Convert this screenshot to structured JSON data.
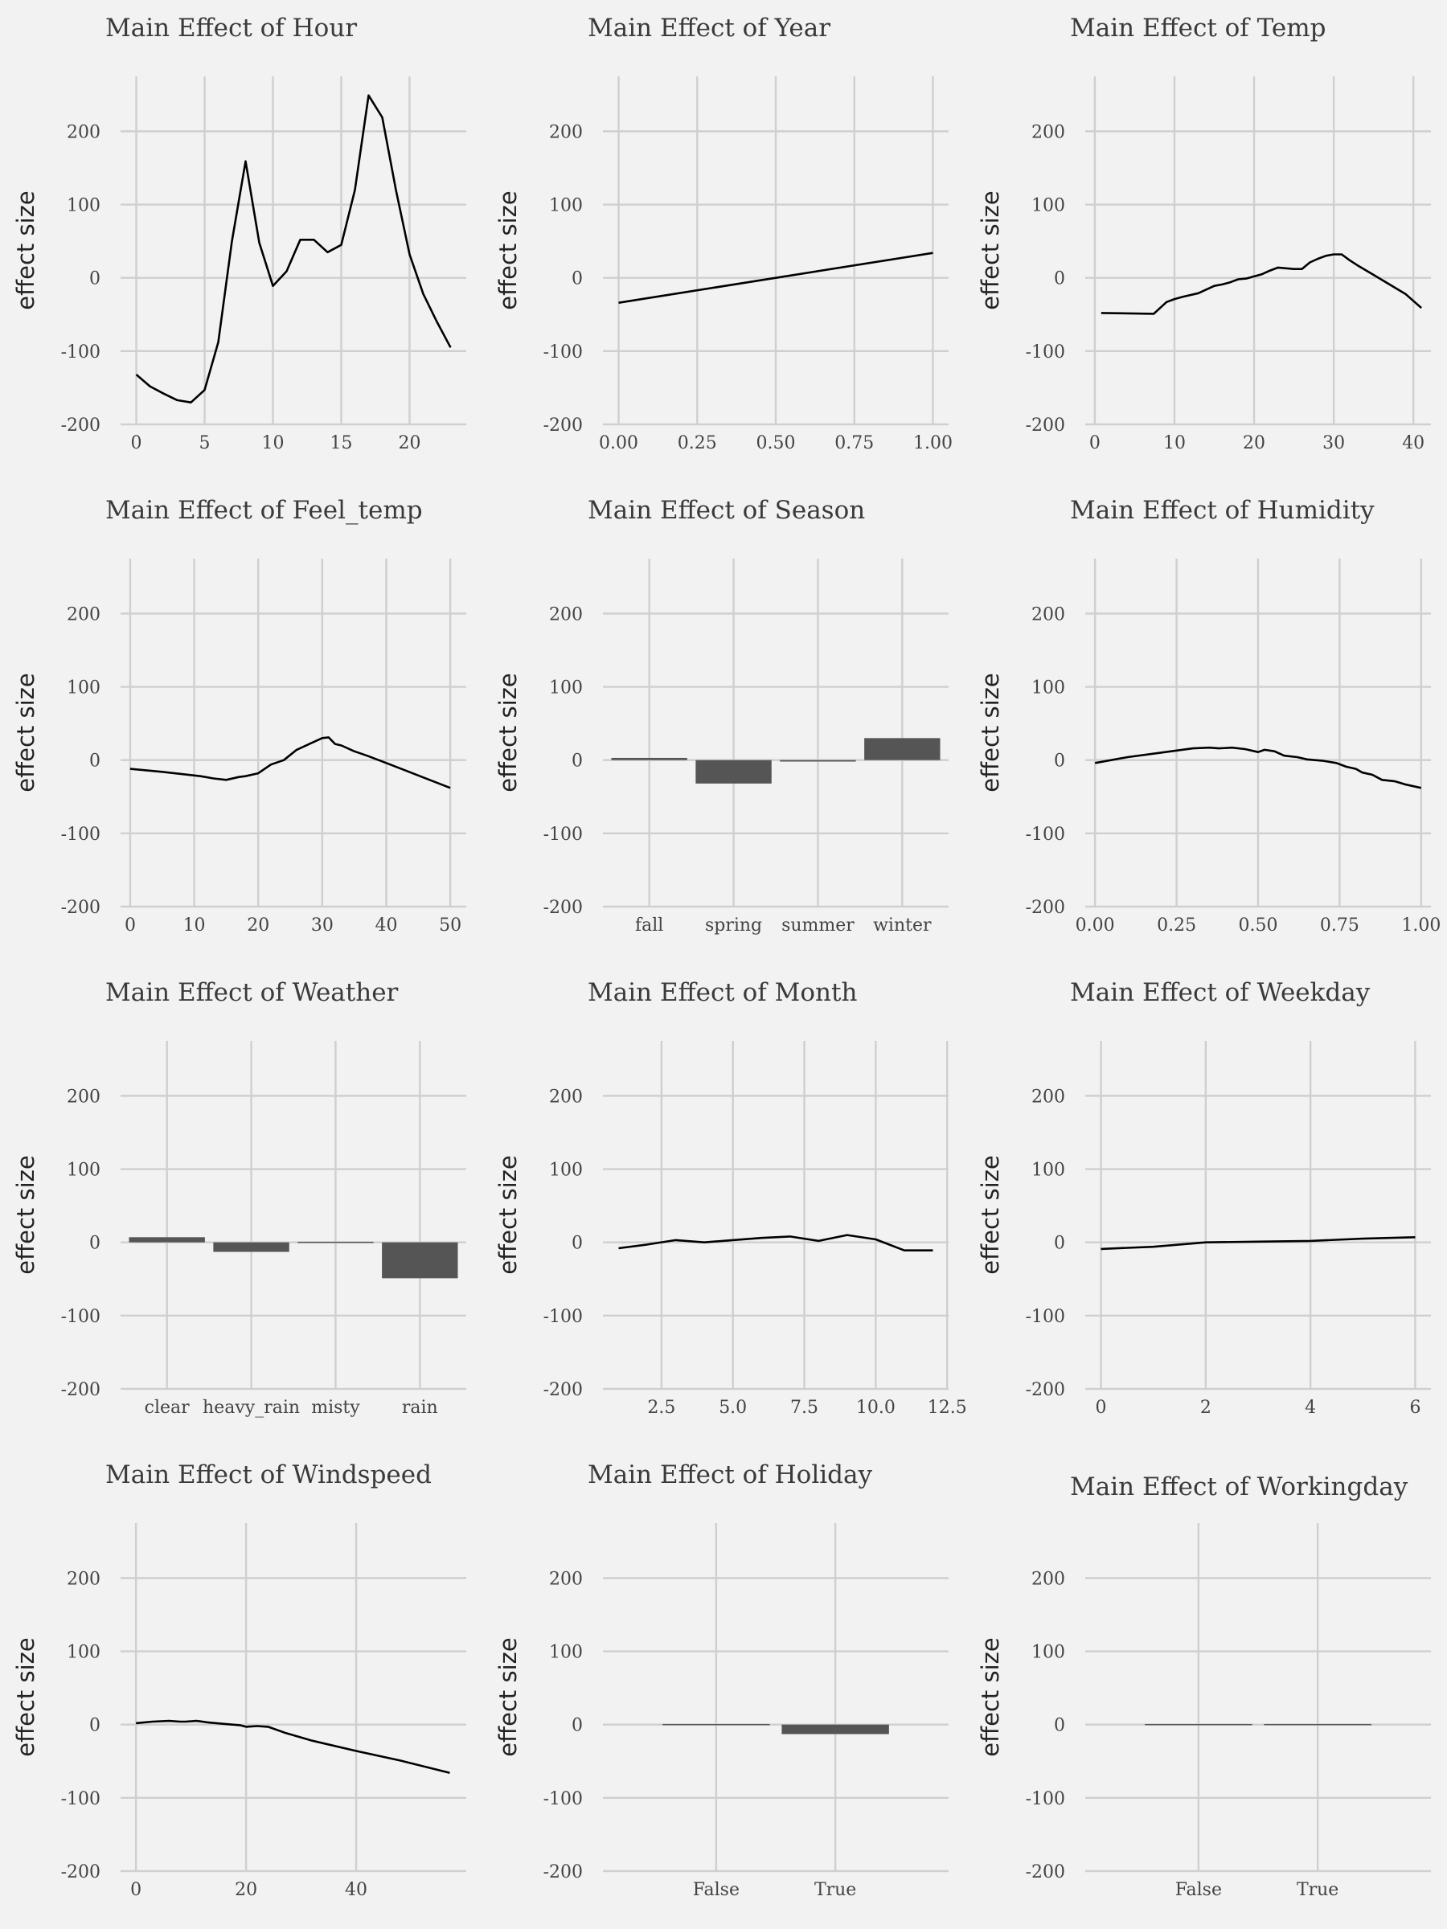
{
  "style": {
    "background": "#f2f2f2",
    "grid_color": "#cfcfcf",
    "line_color": "#000000",
    "bar_color": "#555555"
  },
  "chart_data": [
    {
      "type": "line",
      "title": "Main Effect of Hour",
      "ylabel": "effect size",
      "xlim": [
        -1.15,
        24.15
      ],
      "xticks": [
        0,
        5,
        10,
        15,
        20
      ],
      "xtick_labels": [
        "0",
        "5",
        "10",
        "15",
        "20"
      ],
      "ylim": [
        -200,
        275
      ],
      "yticks": [
        -200,
        -100,
        0,
        100,
        200
      ],
      "ytick_labels": [
        "-200",
        "-100",
        "0",
        "100",
        "200"
      ],
      "x": [
        0,
        1,
        2,
        3,
        4,
        5,
        6,
        7,
        8,
        9,
        10,
        11,
        12,
        13,
        14,
        15,
        16,
        17,
        18,
        19,
        20,
        21,
        22,
        23
      ],
      "y": [
        -132,
        -148,
        -158,
        -167,
        -170,
        -153,
        -88,
        50,
        159,
        48,
        -11,
        9,
        52,
        52,
        35,
        45,
        120,
        249,
        219,
        120,
        32,
        -22,
        -60,
        -95
      ]
    },
    {
      "type": "line",
      "title": "Main Effect of Year",
      "ylabel": "effect size",
      "xlim": [
        -0.05,
        1.05
      ],
      "xticks": [
        0,
        0.25,
        0.5,
        0.75,
        1
      ],
      "xtick_labels": [
        "0.00",
        "0.25",
        "0.50",
        "0.75",
        "1.00"
      ],
      "ylim": [
        -200,
        275
      ],
      "yticks": [
        -200,
        -100,
        0,
        100,
        200
      ],
      "ytick_labels": [
        "-200",
        "-100",
        "0",
        "100",
        "200"
      ],
      "x": [
        0,
        1
      ],
      "y": [
        -34,
        34
      ]
    },
    {
      "type": "line",
      "title": "Main Effect of Temp",
      "ylabel": "effect size",
      "xlim": [
        -1.2,
        42.2
      ],
      "xticks": [
        0,
        10,
        20,
        30,
        40
      ],
      "xtick_labels": [
        "0",
        "10",
        "20",
        "30",
        "40"
      ],
      "ylim": [
        -200,
        275
      ],
      "yticks": [
        -200,
        -100,
        0,
        100,
        200
      ],
      "ytick_labels": [
        "-200",
        "-100",
        "0",
        "100",
        "200"
      ],
      "x": [
        0.8,
        7.4,
        9,
        10,
        11,
        13,
        15,
        16,
        17,
        18,
        19,
        20,
        21,
        22,
        23,
        24,
        25,
        26,
        27,
        28,
        29,
        30,
        31,
        32,
        33,
        35,
        37,
        39,
        41
      ],
      "y": [
        -48,
        -49,
        -33,
        -29,
        -26,
        -21,
        -11,
        -9,
        -6,
        -2,
        -1,
        2,
        5,
        10,
        14,
        13,
        12,
        12,
        21,
        26,
        30,
        32,
        32,
        24,
        17,
        4,
        -9,
        -22,
        -41
      ]
    },
    {
      "type": "line",
      "title": "Main Effect of Feel_temp",
      "ylabel": "effect size",
      "xlim": [
        -1.5,
        52.5
      ],
      "xticks": [
        0,
        10,
        20,
        30,
        40,
        50
      ],
      "xtick_labels": [
        "0",
        "10",
        "20",
        "30",
        "40",
        "50"
      ],
      "ylim": [
        -200,
        275
      ],
      "yticks": [
        -200,
        -100,
        0,
        100,
        200
      ],
      "ytick_labels": [
        "-200",
        "-100",
        "0",
        "100",
        "200"
      ],
      "x": [
        0,
        5,
        11,
        13,
        15,
        17,
        18,
        20,
        22,
        24,
        26,
        28,
        30,
        31,
        32,
        33,
        35,
        37,
        40,
        45,
        50
      ],
      "y": [
        -12,
        -16,
        -22,
        -25,
        -27,
        -23,
        -22,
        -18,
        -6,
        0,
        14,
        22,
        30,
        31,
        22,
        20,
        12,
        6,
        -4,
        -21,
        -38
      ]
    },
    {
      "type": "bar",
      "title": "Main Effect of Season",
      "ylabel": "effect size",
      "categories": [
        "fall",
        "spring",
        "summer",
        "winter"
      ],
      "values": [
        3,
        -32,
        -2,
        30
      ],
      "ylim": [
        -200,
        275
      ],
      "yticks": [
        -200,
        -100,
        0,
        100,
        200
      ],
      "ytick_labels": [
        "-200",
        "-100",
        "0",
        "100",
        "200"
      ]
    },
    {
      "type": "line",
      "title": "Main Effect of Humidity",
      "ylabel": "effect size",
      "xlim": [
        -0.03,
        1.03
      ],
      "xticks": [
        0,
        0.25,
        0.5,
        0.75,
        1
      ],
      "xtick_labels": [
        "0.00",
        "0.25",
        "0.50",
        "0.75",
        "1.00"
      ],
      "ylim": [
        -200,
        275
      ],
      "yticks": [
        -200,
        -100,
        0,
        100,
        200
      ],
      "ytick_labels": [
        "-200",
        "-100",
        "0",
        "100",
        "200"
      ],
      "x": [
        0,
        0.1,
        0.2,
        0.3,
        0.35,
        0.38,
        0.42,
        0.46,
        0.5,
        0.52,
        0.55,
        0.58,
        0.62,
        0.65,
        0.7,
        0.74,
        0.77,
        0.8,
        0.82,
        0.85,
        0.88,
        0.92,
        0.95,
        1
      ],
      "y": [
        -4,
        4,
        10,
        16,
        17,
        16,
        17,
        15,
        11,
        14,
        12,
        6,
        4,
        1,
        -1,
        -4,
        -9,
        -12,
        -17,
        -20,
        -27,
        -29,
        -33,
        -38
      ]
    },
    {
      "type": "bar",
      "title": "Main Effect of Weather",
      "ylabel": "effect size",
      "categories": [
        "clear",
        "heavy_rain",
        "misty",
        "rain"
      ],
      "values": [
        7,
        -13,
        -1,
        -49
      ],
      "ylim": [
        -200,
        275
      ],
      "yticks": [
        -200,
        -100,
        0,
        100,
        200
      ],
      "ytick_labels": [
        "-200",
        "-100",
        "0",
        "100",
        "200"
      ]
    },
    {
      "type": "line",
      "title": "Main Effect of Month",
      "ylabel": "effect size",
      "xlim": [
        0.45,
        12.55
      ],
      "xticks": [
        2.5,
        5,
        7.5,
        10,
        12.5
      ],
      "xtick_labels": [
        "2.5",
        "5.0",
        "7.5",
        "10.0",
        "12.5"
      ],
      "ylim": [
        -200,
        275
      ],
      "yticks": [
        -200,
        -100,
        0,
        100,
        200
      ],
      "ytick_labels": [
        "-200",
        "-100",
        "0",
        "100",
        "200"
      ],
      "x": [
        1,
        2,
        3,
        4,
        5,
        6,
        7,
        8,
        9,
        10,
        11,
        12
      ],
      "y": [
        -8,
        -3,
        3,
        0,
        3,
        6,
        8,
        2,
        10,
        4,
        -11,
        -11
      ]
    },
    {
      "type": "line",
      "title": "Main Effect of Weekday",
      "ylabel": "effect size",
      "xlim": [
        -0.3,
        6.3
      ],
      "xticks": [
        0,
        2,
        4,
        6
      ],
      "xtick_labels": [
        "0",
        "2",
        "4",
        "6"
      ],
      "ylim": [
        -200,
        275
      ],
      "yticks": [
        -200,
        -100,
        0,
        100,
        200
      ],
      "ytick_labels": [
        "-200",
        "-100",
        "0",
        "100",
        "200"
      ],
      "x": [
        0,
        1,
        2,
        3,
        4,
        5,
        6
      ],
      "y": [
        -9,
        -6,
        0,
        1,
        2,
        5,
        7
      ]
    },
    {
      "type": "line",
      "title": "Main Effect of Windspeed",
      "ylabel": "effect size",
      "xlim": [
        -2.8,
        60
      ],
      "xticks": [
        0,
        20,
        40
      ],
      "xtick_labels": [
        "0",
        "20",
        "40"
      ],
      "ylim": [
        -200,
        275
      ],
      "yticks": [
        -200,
        -100,
        0,
        100,
        200
      ],
      "ytick_labels": [
        "-200",
        "-100",
        "0",
        "100",
        "200"
      ],
      "x": [
        0,
        3,
        6,
        8,
        9,
        11,
        13,
        16,
        19,
        20,
        22,
        24,
        27,
        32,
        40,
        48,
        57
      ],
      "y": [
        2,
        4,
        5,
        4,
        4,
        5,
        3,
        1,
        -1,
        -3,
        -2,
        -3,
        -11,
        -22,
        -36,
        -49,
        -66
      ]
    },
    {
      "type": "bar",
      "title": "Main Effect of Holiday",
      "ylabel": "effect size",
      "categories": [
        "False",
        "True"
      ],
      "values": [
        1,
        -13
      ],
      "ylim": [
        -200,
        275
      ],
      "yticks": [
        -200,
        -100,
        0,
        100,
        200
      ],
      "ytick_labels": [
        "-200",
        "-100",
        "0",
        "100",
        "200"
      ]
    },
    {
      "type": "bar",
      "title": "Main Effect of Workingday",
      "ylabel": "effect size",
      "categories": [
        "False",
        "True"
      ],
      "values": [
        0,
        0
      ],
      "ylim": [
        -200,
        275
      ],
      "yticks": [
        -200,
        -100,
        0,
        100,
        200
      ],
      "ytick_labels": [
        "-200",
        "-100",
        "0",
        "100",
        "200"
      ]
    }
  ]
}
